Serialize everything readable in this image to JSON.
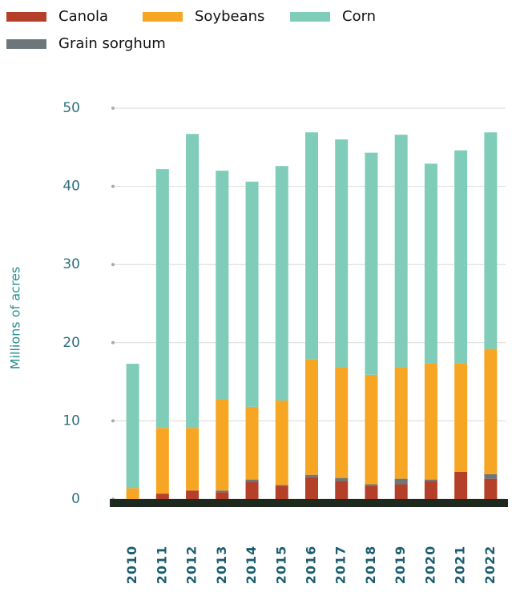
{
  "chart_data": {
    "type": "stacked_bar",
    "y_label": "Millions of acres",
    "categories": [
      "2010",
      "2011",
      "2012",
      "2013",
      "2014",
      "2015",
      "2016",
      "2017",
      "2018",
      "2019",
      "2020",
      "2021",
      "2022"
    ],
    "series": [
      {
        "name": "Canola",
        "color": "#b5402a",
        "values": [
          0,
          0.7,
          1.1,
          0.9,
          2.2,
          1.7,
          2.8,
          2.3,
          1.7,
          1.9,
          2.3,
          3.5,
          2.6
        ]
      },
      {
        "name": "Soybeans",
        "color": "#f6a623",
        "values": [
          1.4,
          8.4,
          8.0,
          11.7,
          9.3,
          10.8,
          14.8,
          14.2,
          14.0,
          14.3,
          14.9,
          13.9,
          16.0
        ]
      },
      {
        "name": "Corn",
        "color": "#7fcdb8",
        "values": [
          15.9,
          33.1,
          37.6,
          29.2,
          28.8,
          30.0,
          29.0,
          29.1,
          28.4,
          29.7,
          25.5,
          27.2,
          27.7
        ]
      },
      {
        "name": "Grain sorghum",
        "color": "#6d7779",
        "values": [
          0,
          0,
          0,
          0.2,
          0.3,
          0.1,
          0.3,
          0.4,
          0.2,
          0.7,
          0.2,
          0,
          0.6
        ]
      }
    ],
    "ylim": [
      0,
      50
    ],
    "yticks": [
      0,
      10,
      20,
      30,
      40,
      50
    ],
    "grid": true
  }
}
